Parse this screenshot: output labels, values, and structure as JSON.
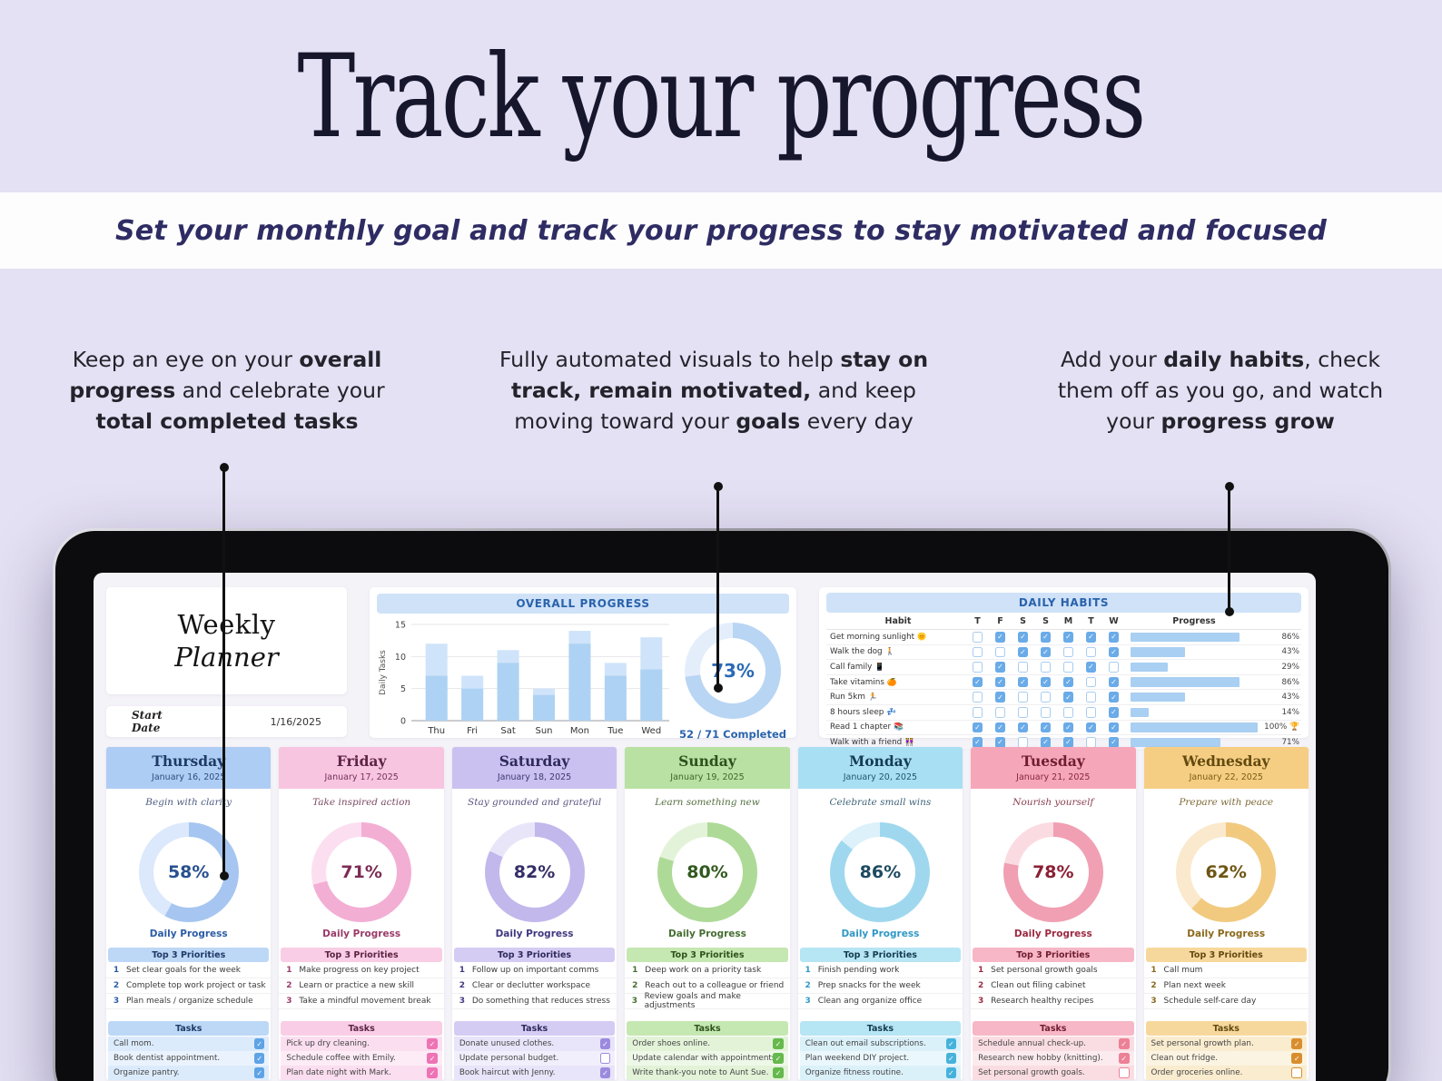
{
  "page": {
    "title": "Track your progress",
    "subtitle": "Set your monthly goal and track your progress to stay motivated and focused"
  },
  "annotations": {
    "left": {
      "segments": [
        {
          "t": "Keep an eye on your ",
          "b": false
        },
        {
          "t": "overall progress",
          "b": true
        },
        {
          "t": " and celebrate your ",
          "b": false
        },
        {
          "t": "total completed tasks",
          "b": true
        }
      ]
    },
    "center": {
      "segments": [
        {
          "t": "Fully automated visuals to help ",
          "b": false
        },
        {
          "t": "stay on track, remain motivated,",
          "b": true
        },
        {
          "t": " and keep moving toward your ",
          "b": false
        },
        {
          "t": "goals",
          "b": true
        },
        {
          "t": " every day",
          "b": false
        }
      ]
    },
    "right": {
      "segments": [
        {
          "t": "Add your ",
          "b": false
        },
        {
          "t": "daily habits",
          "b": true
        },
        {
          "t": ", check them off as you go, and watch your ",
          "b": false
        },
        {
          "t": "progress grow",
          "b": true
        }
      ]
    }
  },
  "planner": {
    "title_top": "Weekly",
    "title_bottom": "Planner",
    "start_date_label": "Start Date",
    "start_date_value": "1/16/2025"
  },
  "overall": {
    "banner": "OVERALL PROGRESS",
    "pct": 73,
    "pct_text": "73%",
    "completed_text": "52 / 71 Completed",
    "ring_color": "#b9d5f4",
    "ring_bg": "#e4eefb",
    "pct_color": "#2a6ab6"
  },
  "habits": {
    "banner": "DAILY HABITS",
    "habit_col": "Habit",
    "progress_col": "Progress",
    "day_letters": [
      "T",
      "F",
      "S",
      "S",
      "M",
      "T",
      "W"
    ],
    "rows": [
      {
        "name": "Get morning sunlight",
        "emoji": "🌞",
        "checks": [
          0,
          1,
          1,
          1,
          1,
          1,
          1
        ],
        "pct": 86,
        "pct_text": "86%"
      },
      {
        "name": "Walk the dog",
        "emoji": "🚶",
        "checks": [
          0,
          0,
          1,
          1,
          0,
          0,
          1
        ],
        "pct": 43,
        "pct_text": "43%"
      },
      {
        "name": "Call family",
        "emoji": "📱",
        "checks": [
          0,
          1,
          0,
          0,
          0,
          1,
          0
        ],
        "pct": 29,
        "pct_text": "29%"
      },
      {
        "name": "Take vitamins",
        "emoji": "🍊",
        "checks": [
          1,
          1,
          1,
          1,
          1,
          0,
          1
        ],
        "pct": 86,
        "pct_text": "86%"
      },
      {
        "name": "Run 5km",
        "emoji": "🏃",
        "checks": [
          0,
          1,
          0,
          0,
          1,
          0,
          1
        ],
        "pct": 43,
        "pct_text": "43%"
      },
      {
        "name": "8 hours sleep",
        "emoji": "💤",
        "checks": [
          0,
          0,
          0,
          0,
          0,
          0,
          1
        ],
        "pct": 14,
        "pct_text": "14%"
      },
      {
        "name": "Read 1 chapter",
        "emoji": "📚",
        "checks": [
          1,
          1,
          1,
          1,
          1,
          1,
          1
        ],
        "pct": 100,
        "pct_text": "100%",
        "trophy": "🏆"
      },
      {
        "name": "Walk with a friend",
        "emoji": "👭",
        "checks": [
          1,
          1,
          0,
          1,
          1,
          0,
          1
        ],
        "pct": 71,
        "pct_text": "71%"
      }
    ]
  },
  "labels": {
    "priorities_header": "Top 3 Priorities",
    "tasks_header": "Tasks",
    "daily_progress": "Daily Progress"
  },
  "days": [
    {
      "name": "Thursday",
      "date": "January 16, 2025",
      "quote": "Begin with clarity",
      "pct": 58,
      "pct_text": "58%",
      "priorities": [
        "Set clear goals for the week",
        "Complete top work project or task",
        "Plan meals / organize schedule"
      ],
      "tasks": [
        {
          "text": "Call mom.",
          "done": true
        },
        {
          "text": "Book dentist appointment.",
          "done": true
        },
        {
          "text": "Organize pantry.",
          "done": true
        }
      ],
      "colors": {
        "header": "#aecdf4",
        "nameColor": "#1e3a66",
        "dateColor": "#2f4d7d",
        "quote": "#4d5d80",
        "ring": "#a6c6f1",
        "ringBg": "#dce8fb",
        "pctText": "#27508f",
        "label": "#2b5ca6",
        "banner": "#bdd8f7",
        "bannerText": "#1e3a66",
        "tintA": "#dcebfc",
        "tintB": "#eaf3fd",
        "check": "#5ea3e5"
      }
    },
    {
      "name": "Friday",
      "date": "January 17, 2025",
      "quote": "Take inspired action",
      "pct": 71,
      "pct_text": "71%",
      "priorities": [
        "Make progress on key project",
        "Learn or practice a new skill",
        "Take a mindful movement break"
      ],
      "tasks": [
        {
          "text": "Pick up dry cleaning.",
          "done": true
        },
        {
          "text": "Schedule coffee with Emily.",
          "done": true
        },
        {
          "text": "Plan date night with Mark.",
          "done": true
        }
      ],
      "colors": {
        "header": "#f8c5e0",
        "nameColor": "#5d2444",
        "dateColor": "#74315a",
        "quote": "#7c4a64",
        "ring": "#f3aed4",
        "ringBg": "#fbdff0",
        "pctText": "#7c2c54",
        "label": "#993a68",
        "banner": "#f9cde5",
        "bannerText": "#5d2444",
        "tintA": "#fbdef0",
        "tintB": "#fdecf6",
        "check": "#ee73b4"
      }
    },
    {
      "name": "Saturday",
      "date": "January 18, 2025",
      "quote": "Stay grounded and grateful",
      "pct": 82,
      "pct_text": "82%",
      "priorities": [
        "Follow up on important comms",
        "Clear or declutter workspace",
        "Do something that reduces stress"
      ],
      "tasks": [
        {
          "text": "Donate unused clothes.",
          "done": true
        },
        {
          "text": "Update personal budget.",
          "done": false
        },
        {
          "text": "Book haircut with Jenny.",
          "done": true
        }
      ],
      "colors": {
        "header": "#cbc1f0",
        "nameColor": "#2e2a5c",
        "dateColor": "#3c3770",
        "quote": "#5b5480",
        "ring": "#c2b8ec",
        "ringBg": "#e9e5f9",
        "pctText": "#352e66",
        "label": "#403880",
        "banner": "#d5ccf4",
        "bannerText": "#2e2a5c",
        "tintA": "#e8e4f9",
        "tintB": "#f2effc",
        "check": "#9c8ade"
      }
    },
    {
      "name": "Sunday",
      "date": "January 19, 2025",
      "quote": "Learn something new",
      "pct": 80,
      "pct_text": "80%",
      "priorities": [
        "Deep work on a priority task",
        "Reach out to a colleague or friend",
        "Review goals and make adjustments"
      ],
      "tasks": [
        {
          "text": "Order shoes online.",
          "done": true
        },
        {
          "text": "Update calendar with appointments.",
          "done": true
        },
        {
          "text": "Write thank-you note to Aunt Sue.",
          "done": true
        }
      ],
      "colors": {
        "header": "#b8e1a3",
        "nameColor": "#2f511d",
        "dateColor": "#3e6628",
        "quote": "#54703f",
        "ring": "#aeda97",
        "ringBg": "#e3f3d9",
        "pctText": "#31591f",
        "label": "#456e31",
        "banner": "#c5e7b2",
        "bannerText": "#2f511d",
        "tintA": "#e2f3d8",
        "tintB": "#eef8e8",
        "check": "#66b94c"
      }
    },
    {
      "name": "Monday",
      "date": "January 20, 2025",
      "quote": "Celebrate small wins",
      "pct": 86,
      "pct_text": "86%",
      "priorities": [
        "Finish pending work",
        "Prep snacks for the week",
        "Clean ang organize office"
      ],
      "tasks": [
        {
          "text": "Clean out email subscriptions.",
          "done": true
        },
        {
          "text": "Plan weekend DIY project.",
          "done": true
        },
        {
          "text": "Organize fitness routine.",
          "done": true
        }
      ],
      "colors": {
        "header": "#a8dff2",
        "nameColor": "#143c52",
        "dateColor": "#1d5670",
        "quote": "#3f6478",
        "ring": "#9fd8ee",
        "ringBg": "#dcf1fa",
        "pctText": "#1d4a60",
        "label": "#2f98c6",
        "banner": "#b6e5f4",
        "bannerText": "#143c52",
        "tintA": "#dbf1fa",
        "tintB": "#eaf7fc",
        "check": "#46b2dc"
      }
    },
    {
      "name": "Tuesday",
      "date": "January 21, 2025",
      "quote": "Nourish yourself",
      "pct": 78,
      "pct_text": "78%",
      "priorities": [
        "Set personal growth goals",
        "Clean out filing cabinet",
        "Research healthy recipes"
      ],
      "tasks": [
        {
          "text": "Schedule annual check-up.",
          "done": true
        },
        {
          "text": "Research new hobby (knitting).",
          "done": true
        },
        {
          "text": "Set personal growth goals.",
          "done": false
        }
      ],
      "colors": {
        "header": "#f5a7b9",
        "nameColor": "#701d30",
        "dateColor": "#88263e",
        "quote": "#8a4252",
        "ring": "#f19fb3",
        "ringBg": "#fbdbe2",
        "pctText": "#8c1f33",
        "label": "#9c2940",
        "banner": "#f7b7c6",
        "bannerText": "#701d30",
        "tintA": "#fadde3",
        "tintB": "#fcebee",
        "check": "#ec8196"
      }
    },
    {
      "name": "Wednesday",
      "date": "January 22, 2025",
      "quote": "Prepare with peace",
      "pct": 62,
      "pct_text": "62%",
      "priorities": [
        "Call mum",
        "Plan next week",
        "Schedule self-care day"
      ],
      "tasks": [
        {
          "text": "Set personal growth plan.",
          "done": true
        },
        {
          "text": "Clean out fridge.",
          "done": true
        },
        {
          "text": "Order groceries online.",
          "done": false
        }
      ],
      "colors": {
        "header": "#f5ce83",
        "nameColor": "#634a10",
        "dateColor": "#7a5c16",
        "quote": "#7e6a38",
        "ring": "#f1ca80",
        "ringBg": "#fae9cc",
        "pctText": "#6e5512",
        "label": "#8a681a",
        "banner": "#f7d89c",
        "bannerText": "#634a10",
        "tintA": "#faeccf",
        "tintB": "#fcf4e2",
        "check": "#d88e2e"
      }
    }
  ],
  "chart_data": [
    {
      "type": "bar",
      "title": "OVERALL PROGRESS",
      "categories": [
        "Thu",
        "Fri",
        "Sat",
        "Sun",
        "Mon",
        "Tue",
        "Wed"
      ],
      "series": [
        {
          "name": "Total tasks",
          "values": [
            12,
            7,
            11,
            5,
            14,
            9,
            13
          ]
        },
        {
          "name": "Completed tasks",
          "values": [
            7,
            5,
            9,
            4,
            12,
            7,
            8
          ]
        }
      ],
      "xlabel": "",
      "ylabel": "Daily Tasks",
      "yticks": [
        0,
        5,
        10,
        15
      ],
      "ylim": [
        0,
        15
      ],
      "grid": true,
      "legend": false,
      "bar_color_total": "#cfe4fa",
      "bar_color_completed": "#aed2f3"
    },
    {
      "type": "pie",
      "title": "Overall completion donut",
      "labels": [
        "Completed",
        "Remaining"
      ],
      "values": [
        73,
        27
      ],
      "center_label": "73%",
      "caption": "52 / 71 Completed"
    },
    {
      "type": "pie",
      "title": "Daily progress donuts",
      "labels": [
        "Thursday",
        "Friday",
        "Saturday",
        "Sunday",
        "Monday",
        "Tuesday",
        "Wednesday"
      ],
      "values": [
        58,
        71,
        82,
        80,
        86,
        78,
        62
      ]
    }
  ]
}
